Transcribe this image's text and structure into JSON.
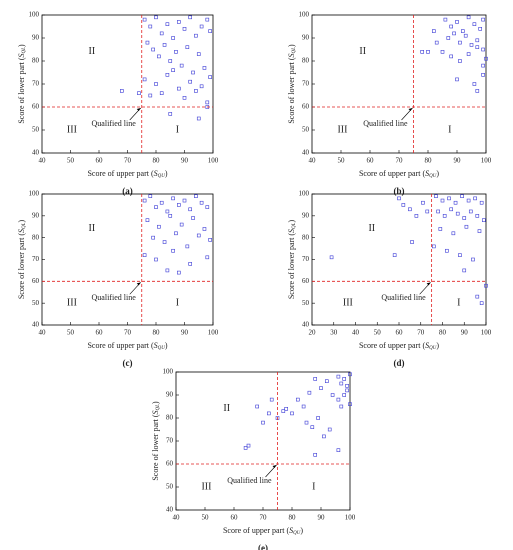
{
  "chart_data": [
    {
      "type": "scatter",
      "label": "(a)",
      "color": "#3b3bd6",
      "xlim": [
        40,
        100
      ],
      "ylim": [
        40,
        100
      ],
      "xticks": [
        40,
        50,
        60,
        70,
        80,
        90,
        100
      ],
      "yticks": [
        40,
        50,
        60,
        70,
        80,
        90,
        100
      ],
      "xlabel": {
        "text": "Score of upper part (",
        "symbol": "S",
        "sub": "QU",
        "close": ")"
      },
      "ylabel": {
        "text": "Score of lower part (",
        "symbol": "S",
        "sub": "QL",
        "close": ")"
      },
      "thresholds": {
        "x": 75,
        "y": 60
      },
      "threshold_color": "#e02020",
      "annotation": "Qualified line",
      "region_labels": [
        "I",
        "II",
        "III"
      ],
      "x": [
        76,
        78,
        80,
        82,
        84,
        86,
        88,
        90,
        92,
        94,
        96,
        98,
        99,
        77,
        79,
        81,
        83,
        85,
        87,
        89,
        91,
        93,
        95,
        97,
        76,
        80,
        84,
        88,
        92,
        96,
        99,
        78,
        82,
        86,
        90,
        94,
        98,
        68,
        74,
        85,
        95,
        98
      ],
      "y": [
        98,
        95,
        99,
        92,
        96,
        90,
        97,
        94,
        99,
        91,
        95,
        98,
        93,
        88,
        85,
        82,
        87,
        80,
        84,
        78,
        86,
        75,
        83,
        77,
        72,
        70,
        74,
        68,
        71,
        69,
        73,
        65,
        66,
        76,
        64,
        67,
        62,
        67,
        66,
        57,
        55,
        60
      ]
    },
    {
      "type": "scatter",
      "label": "(b)",
      "color": "#3b3bd6",
      "xlim": [
        40,
        100
      ],
      "ylim": [
        40,
        100
      ],
      "xticks": [
        40,
        50,
        60,
        70,
        80,
        90,
        100
      ],
      "yticks": [
        40,
        50,
        60,
        70,
        80,
        90,
        100
      ],
      "xlabel": {
        "text": "Score of upper part (",
        "symbol": "S",
        "sub": "QU",
        "close": ")"
      },
      "ylabel": {
        "text": "Score of lower part (",
        "symbol": "S",
        "sub": "QL",
        "close": ")"
      },
      "thresholds": {
        "x": 75,
        "y": 60
      },
      "threshold_color": "#e02020",
      "annotation": "Qualified line",
      "region_labels": [
        "I",
        "II",
        "III"
      ],
      "x": [
        86,
        88,
        90,
        92,
        94,
        96,
        98,
        99,
        87,
        89,
        91,
        93,
        95,
        97,
        99,
        85,
        88,
        91,
        94,
        97,
        100,
        90,
        96,
        99,
        78,
        80,
        83,
        82,
        97,
        99
      ],
      "y": [
        98,
        95,
        97,
        93,
        99,
        96,
        94,
        98,
        90,
        92,
        88,
        91,
        87,
        89,
        85,
        84,
        82,
        80,
        83,
        86,
        81,
        72,
        70,
        74,
        84,
        84,
        88,
        93,
        67,
        78
      ]
    },
    {
      "type": "scatter",
      "label": "(c)",
      "color": "#3b3bd6",
      "xlim": [
        40,
        100
      ],
      "ylim": [
        40,
        100
      ],
      "xticks": [
        40,
        50,
        60,
        70,
        80,
        90,
        100
      ],
      "yticks": [
        40,
        50,
        60,
        70,
        80,
        90,
        100
      ],
      "xlabel": {
        "text": "Score of upper part (",
        "symbol": "S",
        "sub": "QU",
        "close": ")"
      },
      "ylabel": {
        "text": "Score of lower part (",
        "symbol": "S",
        "sub": "QL",
        "close": ")"
      },
      "thresholds": {
        "x": 75,
        "y": 60
      },
      "threshold_color": "#e02020",
      "annotation": "Qualified line",
      "region_labels": [
        "I",
        "II",
        "III"
      ],
      "x": [
        76,
        78,
        80,
        82,
        84,
        86,
        88,
        90,
        92,
        94,
        96,
        98,
        77,
        81,
        85,
        89,
        93,
        97,
        79,
        83,
        87,
        91,
        95,
        99,
        76,
        80,
        86,
        92,
        98,
        84,
        88
      ],
      "y": [
        97,
        99,
        94,
        96,
        92,
        98,
        95,
        97,
        93,
        99,
        96,
        94,
        88,
        85,
        90,
        86,
        89,
        84,
        80,
        78,
        82,
        76,
        81,
        79,
        72,
        70,
        74,
        68,
        71,
        65,
        64
      ]
    },
    {
      "type": "scatter",
      "label": "(d)",
      "color": "#3b3bd6",
      "xlim": [
        20,
        100
      ],
      "ylim": [
        40,
        100
      ],
      "xticks": [
        20,
        30,
        40,
        50,
        60,
        70,
        80,
        90,
        100
      ],
      "yticks": [
        40,
        50,
        60,
        70,
        80,
        90,
        100
      ],
      "xlabel": {
        "text": "Score of upper part (",
        "symbol": "S",
        "sub": "QU",
        "close": ")"
      },
      "ylabel": {
        "text": "Score of lower part (",
        "symbol": "S",
        "sub": "QL",
        "close": ")"
      },
      "thresholds": {
        "x": 75,
        "y": 60
      },
      "threshold_color": "#e02020",
      "annotation": "Qualified line",
      "region_labels": [
        "I",
        "II",
        "III"
      ],
      "x": [
        77,
        80,
        83,
        86,
        89,
        92,
        95,
        98,
        78,
        81,
        84,
        87,
        90,
        93,
        96,
        99,
        79,
        85,
        91,
        97,
        76,
        82,
        88,
        94,
        29,
        60,
        62,
        65,
        68,
        71,
        73,
        58,
        66,
        98,
        96,
        100,
        90
      ],
      "y": [
        99,
        97,
        98,
        96,
        99,
        97,
        98,
        96,
        92,
        90,
        93,
        91,
        89,
        92,
        90,
        88,
        84,
        82,
        85,
        83,
        76,
        74,
        72,
        70,
        71,
        98,
        95,
        93,
        90,
        96,
        92,
        72,
        78,
        50,
        53,
        58,
        65
      ]
    },
    {
      "type": "scatter",
      "label": "(e)",
      "color": "#3b3bd6",
      "xlim": [
        40,
        100
      ],
      "ylim": [
        40,
        100
      ],
      "xticks": [
        40,
        50,
        60,
        70,
        80,
        90,
        100
      ],
      "yticks": [
        40,
        50,
        60,
        70,
        80,
        90,
        100
      ],
      "xlabel": {
        "text": "Score of upper part (",
        "symbol": "S",
        "sub": "QU",
        "close": ")"
      },
      "ylabel": {
        "text": "Score of lower part (",
        "symbol": "S",
        "sub": "QL",
        "close": ")"
      },
      "thresholds": {
        "x": 75,
        "y": 60
      },
      "threshold_color": "#e02020",
      "annotation": "Qualified line",
      "region_labels": [
        "I",
        "II",
        "III"
      ],
      "x": [
        96,
        97,
        98,
        99,
        100,
        96,
        98,
        100,
        97,
        99,
        90,
        92,
        94,
        88,
        86,
        84,
        82,
        80,
        78,
        85,
        89,
        93,
        91,
        87,
        65,
        64,
        68,
        70,
        72,
        73,
        75,
        77,
        96,
        88
      ],
      "y": [
        98,
        95,
        97,
        92,
        99,
        88,
        90,
        86,
        85,
        94,
        93,
        96,
        90,
        97,
        91,
        85,
        88,
        82,
        84,
        78,
        80,
        75,
        72,
        76,
        68,
        67,
        85,
        78,
        82,
        88,
        80,
        83,
        66,
        64
      ]
    }
  ]
}
